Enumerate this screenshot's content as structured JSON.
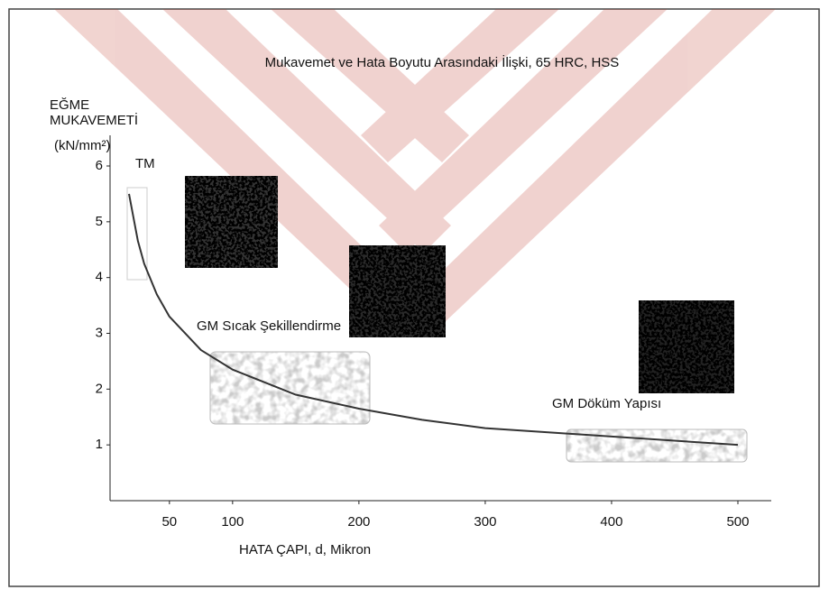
{
  "chart_data": {
    "type": "line",
    "title": "Mukavemet ve Hata Boyutu Arasındaki İlişki, 65 HRC, HSS",
    "y_label": [
      "EĞME",
      "MUKAVEMETİ",
      "(kN/mm²)"
    ],
    "x_label": "HATA ÇAPI, d, Mikron",
    "annotations": [
      "TM",
      "GM Sıcak Şekillendirme",
      "GM Döküm Yapısı"
    ],
    "x": [
      18,
      25,
      30,
      40,
      50,
      75,
      100,
      150,
      200,
      250,
      300,
      400,
      500
    ],
    "series": [
      {
        "color": "#333333",
        "values": [
          5.5,
          4.66,
          4.25,
          3.7,
          3.3,
          2.7,
          2.35,
          1.9,
          1.65,
          1.45,
          1.3,
          1.15,
          1.0
        ]
      }
    ],
    "xlim": [
      3,
      525
    ],
    "ylim": [
      0,
      6.55
    ],
    "xticks": [
      50,
      100,
      200,
      300,
      400,
      500
    ],
    "yticks": [
      1,
      2,
      3,
      4,
      5,
      6
    ]
  }
}
